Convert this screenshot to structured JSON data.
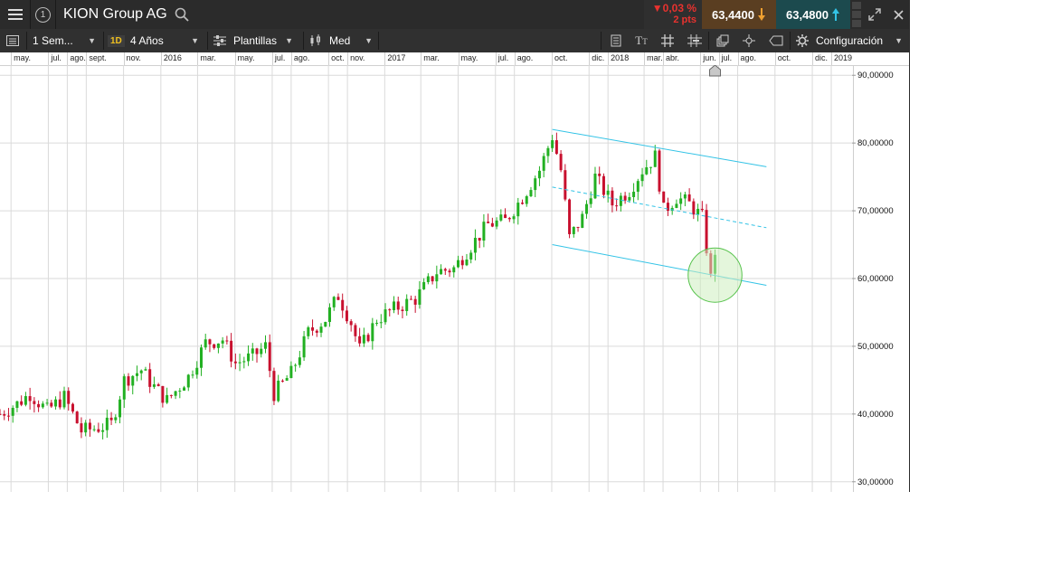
{
  "header": {
    "instrument": "KION Group AG",
    "change_pct": "0,03 %",
    "change_pts": "2 pts",
    "sell_price": "63,4400",
    "buy_price": "63,4800",
    "circle_number": "1"
  },
  "toolbar": {
    "range": "1 Sem...",
    "interval_badge": "1D",
    "period": "4 Años",
    "templates": "Plantillas",
    "avg": "Med",
    "settings": "Configuración"
  },
  "colors": {
    "up": "#22b022",
    "down": "#c8102e",
    "channel": "#33c3e6",
    "highlight_fill": "#cdeec0",
    "highlight_stroke": "#55c24a"
  },
  "icons": [
    "hamburger-icon",
    "search-icon",
    "down-arrow-icon",
    "up-arrow-icon",
    "expand-icon",
    "close-icon",
    "list-icon",
    "candlestick-icon",
    "templates-icon",
    "text-size-icon",
    "grid-icon",
    "crosshair-icon",
    "layers-icon",
    "cursor-icon",
    "label-icon",
    "gear-icon"
  ],
  "chart_data": {
    "type": "candlestick",
    "instrument": "KION Group AG",
    "months_axis": [
      "may.",
      "jul.",
      "ago.",
      "sept.",
      "nov.",
      "2016",
      "mar.",
      "may.",
      "jul.",
      "ago.",
      "oct.",
      "nov.",
      "2017",
      "mar.",
      "may.",
      "jul.",
      "ago.",
      "oct.",
      "dic.",
      "2018",
      "mar.",
      "abr.",
      "jun.",
      "jul.",
      "ago.",
      "oct.",
      "dic.",
      "2019"
    ],
    "y_ticks": [
      30,
      40,
      50,
      60,
      70,
      80,
      90
    ],
    "y_tick_labels": [
      "30,00000",
      "40,00000",
      "50,00000",
      "60,00000",
      "70,00000",
      "80,00000",
      "90,00000"
    ],
    "ylim": [
      28.5,
      91.5
    ],
    "x_range": [
      "2015-04-13",
      "2019-02-04"
    ],
    "current_marker_date": "2018-06-25",
    "anchors": [
      {
        "date": "2015-04-13",
        "close": 40
      },
      {
        "date": "2015-05-11",
        "close": 41.5
      },
      {
        "date": "2015-06-01",
        "close": 43
      },
      {
        "date": "2015-06-29",
        "close": 40.5
      },
      {
        "date": "2015-07-27",
        "close": 42.5
      },
      {
        "date": "2015-08-24",
        "close": 37.5
      },
      {
        "date": "2015-09-21",
        "close": 38
      },
      {
        "date": "2015-10-12",
        "close": 38.5
      },
      {
        "date": "2015-11-02",
        "close": 45
      },
      {
        "date": "2015-11-30",
        "close": 46.5
      },
      {
        "date": "2015-12-21",
        "close": 44
      },
      {
        "date": "2016-01-11",
        "close": 42
      },
      {
        "date": "2016-02-15",
        "close": 45.5
      },
      {
        "date": "2016-03-14",
        "close": 50.5
      },
      {
        "date": "2016-04-11",
        "close": 51
      },
      {
        "date": "2016-05-02",
        "close": 47.5
      },
      {
        "date": "2016-05-30",
        "close": 48.5
      },
      {
        "date": "2016-06-20",
        "close": 50
      },
      {
        "date": "2016-07-04",
        "close": 43
      },
      {
        "date": "2016-08-01",
        "close": 46
      },
      {
        "date": "2016-08-29",
        "close": 52
      },
      {
        "date": "2016-09-26",
        "close": 54
      },
      {
        "date": "2016-10-17",
        "close": 57.5
      },
      {
        "date": "2016-11-07",
        "close": 53.5
      },
      {
        "date": "2016-11-21",
        "close": 49.5
      },
      {
        "date": "2016-12-19",
        "close": 54
      },
      {
        "date": "2017-01-16",
        "close": 55.5
      },
      {
        "date": "2017-02-20",
        "close": 57
      },
      {
        "date": "2017-03-27",
        "close": 61
      },
      {
        "date": "2017-04-24",
        "close": 61.5
      },
      {
        "date": "2017-05-15",
        "close": 64
      },
      {
        "date": "2017-06-19",
        "close": 68
      },
      {
        "date": "2017-07-17",
        "close": 68.5
      },
      {
        "date": "2017-08-14",
        "close": 72
      },
      {
        "date": "2017-09-11",
        "close": 76
      },
      {
        "date": "2017-10-02",
        "close": 81
      },
      {
        "date": "2017-10-16",
        "close": 76
      },
      {
        "date": "2017-10-30",
        "close": 66
      },
      {
        "date": "2017-11-20",
        "close": 69
      },
      {
        "date": "2017-12-11",
        "close": 75
      },
      {
        "date": "2018-01-08",
        "close": 71
      },
      {
        "date": "2018-02-05",
        "close": 73
      },
      {
        "date": "2018-02-26",
        "close": 76
      },
      {
        "date": "2018-03-19",
        "close": 78
      },
      {
        "date": "2018-04-02",
        "close": 70
      },
      {
        "date": "2018-04-23",
        "close": 72
      },
      {
        "date": "2018-05-14",
        "close": 71
      },
      {
        "date": "2018-06-04",
        "close": 69
      },
      {
        "date": "2018-06-18",
        "close": 60
      },
      {
        "date": "2018-06-25",
        "close": 63.5
      }
    ],
    "channel": [
      {
        "from": {
          "date": "2017-10-02",
          "value": 82
        },
        "to": {
          "date": "2018-09-17",
          "value": 76.5
        },
        "style": "solid"
      },
      {
        "from": {
          "date": "2017-10-02",
          "value": 73.5
        },
        "to": {
          "date": "2018-09-17",
          "value": 67.5
        },
        "style": "dashed"
      },
      {
        "from": {
          "date": "2017-10-02",
          "value": 65
        },
        "to": {
          "date": "2018-09-17",
          "value": 59
        },
        "style": "solid"
      }
    ],
    "highlight_ellipse": {
      "center_date": "2018-06-25",
      "center_value": 60.5,
      "half_width_days": 44,
      "half_height_value": 4
    }
  }
}
